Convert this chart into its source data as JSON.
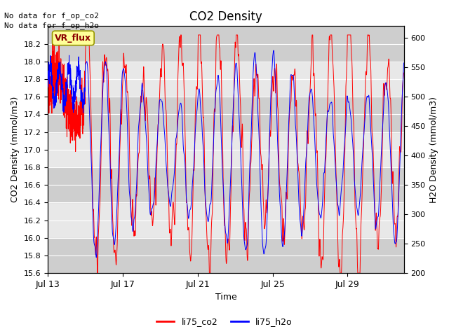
{
  "title": "CO2 Density",
  "xlabel": "Time",
  "ylabel_left": "CO2 Density (mmol/m3)",
  "ylabel_right": "H2O Density (mmol/m3)",
  "co2_ylim": [
    15.6,
    18.4
  ],
  "h2o_ylim": [
    200,
    620
  ],
  "co2_yticks": [
    15.6,
    15.8,
    16.0,
    16.2,
    16.4,
    16.6,
    16.8,
    17.0,
    17.2,
    17.4,
    17.6,
    17.8,
    18.0,
    18.2
  ],
  "h2o_yticks": [
    200,
    250,
    300,
    350,
    400,
    450,
    500,
    550,
    600
  ],
  "xtick_labels": [
    "Jul 13",
    "Jul 17",
    "Jul 21",
    "Jul 25",
    "Jul 29"
  ],
  "no_data_text1": "No data for f_op_co2",
  "no_data_text2": "No data for f_op_h2o",
  "vr_flux_label": "VR_flux",
  "legend_co2": "li75_co2",
  "legend_h2o": "li75_h2o",
  "co2_color": "#FF0000",
  "h2o_color": "#0000FF",
  "bg_color": "#FFFFFF",
  "plot_bg_color": "#E8E8E8",
  "band_color": "#CCCCCC",
  "grid_color": "#FFFFFF",
  "vr_flux_bg": "#FFFF99",
  "vr_flux_fg": "#8B0000",
  "n_days": 19,
  "seed": 42
}
